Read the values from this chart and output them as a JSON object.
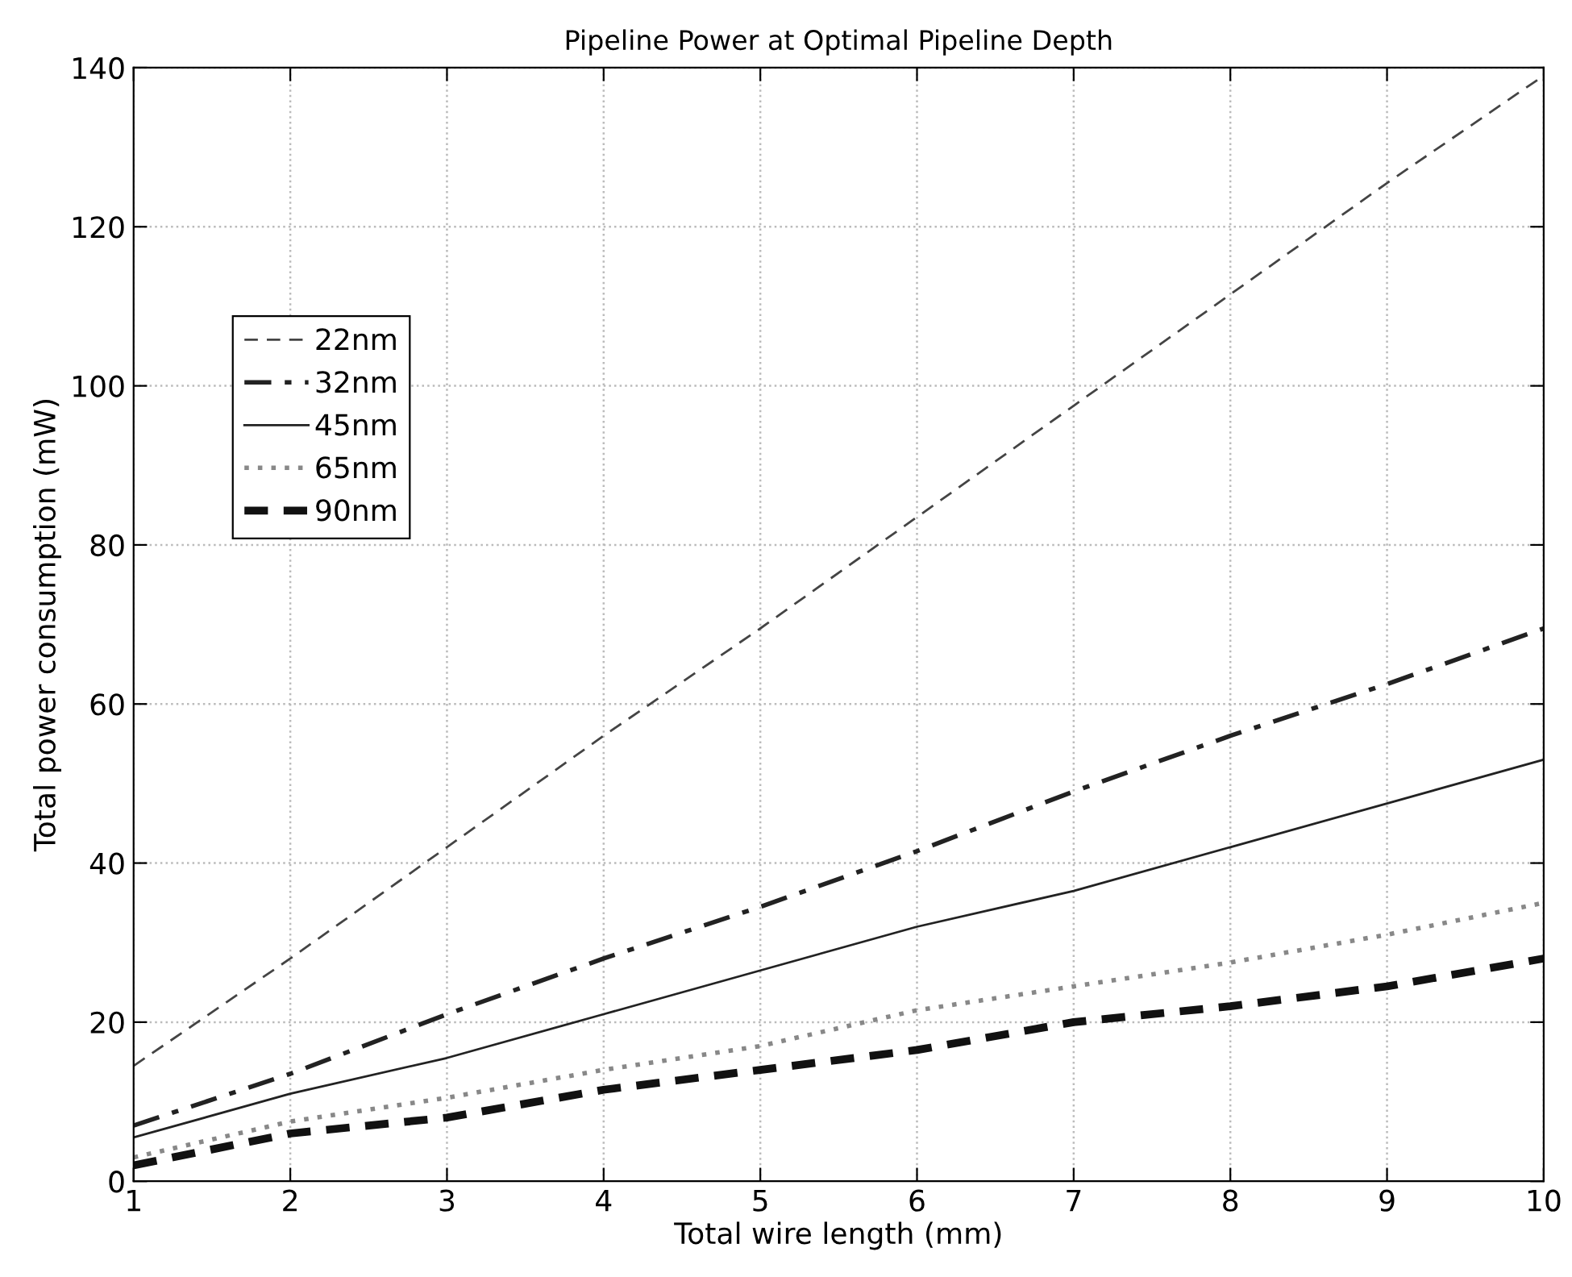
{
  "chart_data": {
    "type": "line",
    "title": "Pipeline Power at Optimal Pipeline Depth",
    "xlabel": "Total wire length (mm)",
    "ylabel": "Total power consumption (mW)",
    "x": [
      1,
      2,
      3,
      4,
      5,
      6,
      7,
      8,
      9,
      10
    ],
    "series": [
      {
        "name": "22nm",
        "color": "#444444",
        "line_style": "dashed",
        "values": [
          14.5,
          28,
          42,
          56,
          69.5,
          83.5,
          97.5,
          111.5,
          125.5,
          139
        ]
      },
      {
        "name": "32nm",
        "color": "#222222",
        "line_style": "dashdot",
        "values": [
          7,
          13.5,
          21,
          28,
          34.5,
          41.5,
          49,
          56,
          62.5,
          69.5
        ]
      },
      {
        "name": "45nm",
        "color": "#222222",
        "line_style": "solid",
        "values": [
          5.5,
          11,
          15.5,
          21,
          26.5,
          32,
          36.5,
          42,
          47.5,
          53
        ]
      },
      {
        "name": "65nm",
        "color": "#888888",
        "line_style": "dotted",
        "values": [
          3,
          7.5,
          10.5,
          14,
          17,
          21.5,
          24.5,
          27.5,
          31,
          35
        ]
      },
      {
        "name": "90nm",
        "color": "#111111",
        "line_style": "dashed_bold",
        "values": [
          2,
          6,
          8,
          11.5,
          14,
          16.5,
          20,
          22,
          24.5,
          28
        ]
      }
    ],
    "xlim": [
      1,
      10
    ],
    "ylim": [
      0,
      140
    ],
    "xticks": [
      1,
      2,
      3,
      4,
      5,
      6,
      7,
      8,
      9,
      10
    ],
    "yticks": [
      0,
      20,
      40,
      60,
      80,
      100,
      120,
      140
    ],
    "grid": true,
    "legend": "top left",
    "marker": "none"
  }
}
